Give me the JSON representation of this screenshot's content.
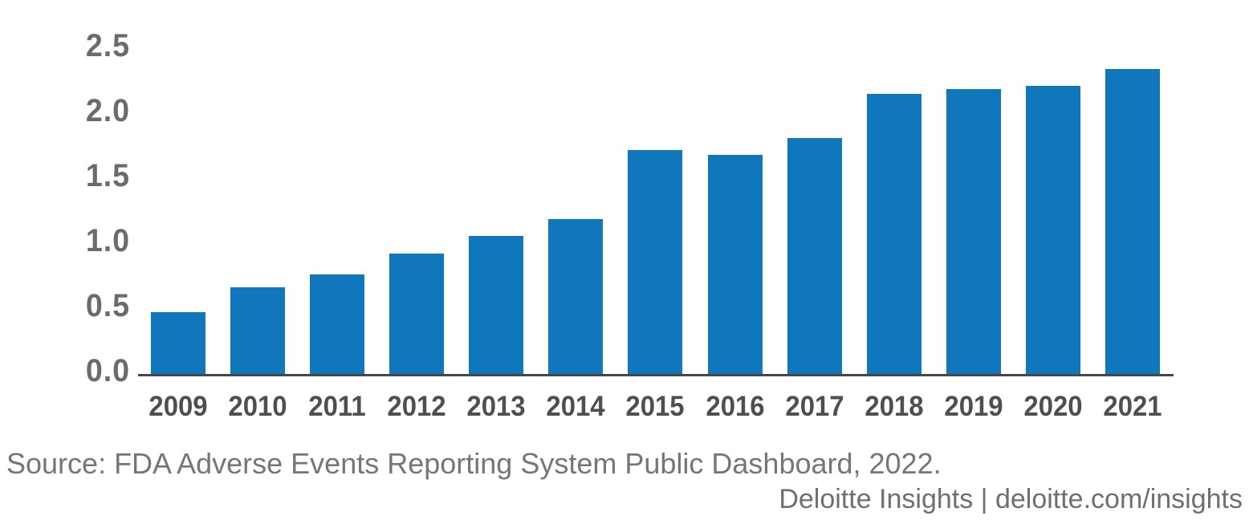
{
  "chart_data": {
    "type": "bar",
    "categories": [
      "2009",
      "2010",
      "2011",
      "2012",
      "2013",
      "2014",
      "2015",
      "2016",
      "2017",
      "2018",
      "2019",
      "2020",
      "2021"
    ],
    "values": [
      0.48,
      0.67,
      0.77,
      0.93,
      1.07,
      1.2,
      1.73,
      1.69,
      1.82,
      2.16,
      2.2,
      2.22,
      2.35
    ],
    "ylim": [
      0,
      2.5
    ],
    "yticks": [
      0.0,
      0.5,
      1.0,
      1.5,
      2.0,
      2.5
    ],
    "ytick_format_decimals": 1,
    "xlabel": "",
    "ylabel": "",
    "grid": false,
    "legend_position": "none",
    "bar_color": "#1177bd",
    "axis_line_color": "#474747",
    "tick_label_color": "#6b6b6b",
    "category_label_color": "#4f4f4f"
  },
  "footer": {
    "source": "Source: FDA Adverse Events Reporting System Public Dashboard, 2022.",
    "branding": "Deloitte Insights | deloitte.com/insights"
  }
}
